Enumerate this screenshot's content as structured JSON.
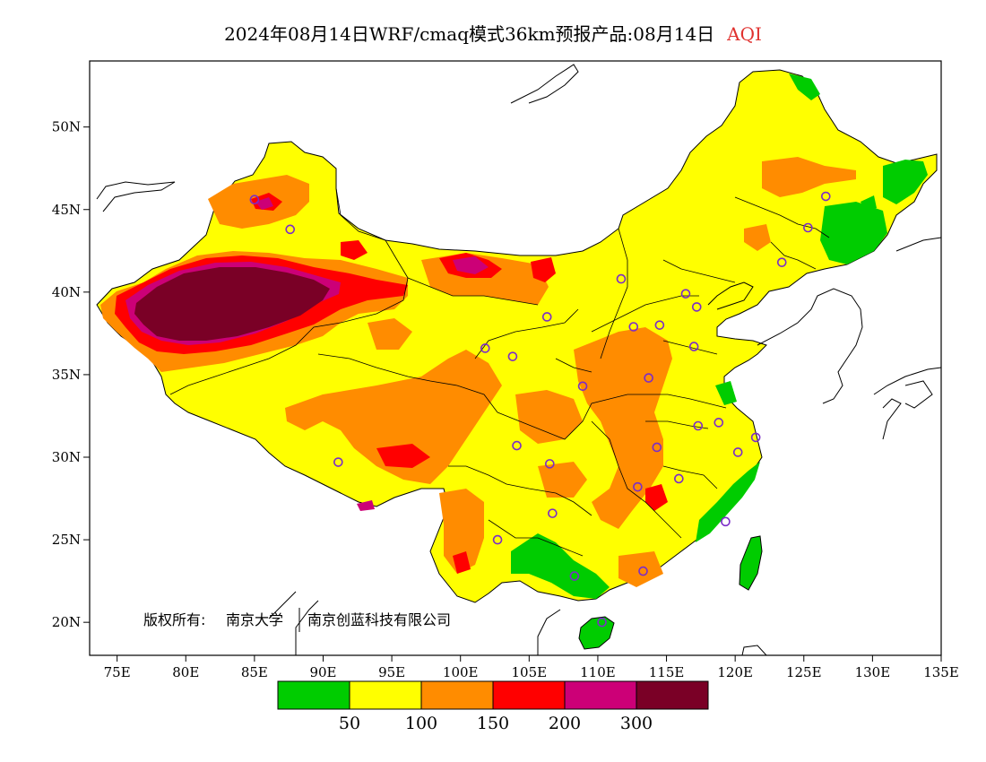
{
  "title": {
    "main": "2024年08月14日WRF/cmaq模式36km预报产品:08月14日",
    "variable": "AQI",
    "variable_color": "#e0322f"
  },
  "copyright": {
    "prefix": "版权所有:",
    "org1": "南京大学",
    "org2": "南京创蓝科技有限公司"
  },
  "axes": {
    "x_ticks": [
      "75E",
      "80E",
      "85E",
      "90E",
      "95E",
      "100E",
      "105E",
      "110E",
      "115E",
      "120E",
      "125E",
      "130E",
      "135E"
    ],
    "y_ticks": [
      "20N",
      "25N",
      "30N",
      "35N",
      "40N",
      "45N",
      "50N"
    ],
    "lon_range": [
      73,
      135
    ],
    "lat_range": [
      18,
      54
    ]
  },
  "legend": {
    "colors": [
      "#00cc00",
      "#ffff00",
      "#ff8c00",
      "#ff0000",
      "#cc0077",
      "#7a0026"
    ],
    "labels": [
      "50",
      "100",
      "150",
      "200",
      "300"
    ]
  },
  "stations": [
    [
      87.6,
      43.8
    ],
    [
      85.0,
      45.6
    ],
    [
      101.8,
      36.6
    ],
    [
      103.8,
      36.1
    ],
    [
      106.3,
      38.5
    ],
    [
      111.7,
      40.8
    ],
    [
      112.6,
      37.9
    ],
    [
      114.5,
      38.0
    ],
    [
      116.4,
      39.9
    ],
    [
      117.2,
      39.1
    ],
    [
      117.0,
      36.7
    ],
    [
      113.7,
      34.8
    ],
    [
      108.9,
      34.3
    ],
    [
      104.1,
      30.7
    ],
    [
      106.5,
      29.6
    ],
    [
      106.7,
      26.6
    ],
    [
      102.7,
      25.0
    ],
    [
      91.1,
      29.7
    ],
    [
      112.9,
      28.2
    ],
    [
      114.3,
      30.6
    ],
    [
      115.9,
      28.7
    ],
    [
      117.3,
      31.9
    ],
    [
      118.8,
      32.1
    ],
    [
      120.2,
      30.3
    ],
    [
      121.5,
      31.2
    ],
    [
      119.3,
      26.1
    ],
    [
      113.3,
      23.1
    ],
    [
      108.3,
      22.8
    ],
    [
      110.3,
      20.0
    ],
    [
      126.6,
      45.8
    ],
    [
      125.3,
      43.9
    ],
    [
      123.4,
      41.8
    ]
  ]
}
